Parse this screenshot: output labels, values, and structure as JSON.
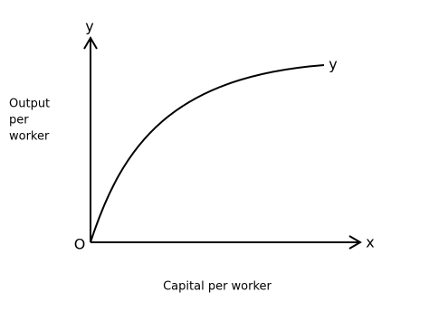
{
  "axes": {
    "y_label": "y",
    "x_label": "x",
    "origin": "O"
  },
  "curve": {
    "label": "y"
  },
  "labels": {
    "vertical": [
      "Output",
      "per",
      "worker"
    ],
    "horizontal": "Capital per worker"
  }
}
